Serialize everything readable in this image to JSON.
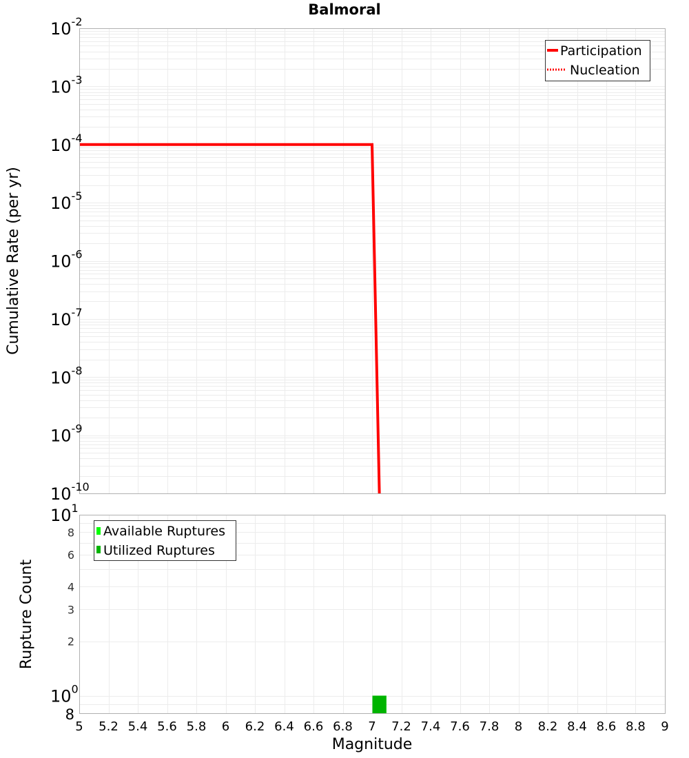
{
  "chart_data": [
    {
      "type": "line",
      "title": "Balmoral",
      "xlabel": "Magnitude",
      "ylabel": "Cumulative Rate (per yr)",
      "yscale": "log",
      "xlim": [
        5,
        9
      ],
      "ylim": [
        1e-10,
        0.01
      ],
      "y_ticks": [
        "10^-2",
        "10^-3",
        "10^-4",
        "10^-5",
        "10^-6",
        "10^-7",
        "10^-8",
        "10^-9",
        "10^-10"
      ],
      "grid": true,
      "legend_position": "upper right",
      "legend": [
        "Participation",
        "Nucleation"
      ],
      "series": [
        {
          "name": "Participation",
          "style": "solid",
          "color": "#ff0000",
          "x": [
            5.0,
            7.0,
            7.05
          ],
          "y": [
            0.0001,
            0.0001,
            1e-10
          ]
        },
        {
          "name": "Nucleation",
          "style": "dotted",
          "color": "#ff0000",
          "x": [
            5.0,
            7.0,
            7.05
          ],
          "y": [
            0.0001,
            0.0001,
            1e-10
          ]
        }
      ]
    },
    {
      "type": "bar",
      "title": "",
      "xlabel": "Magnitude",
      "ylabel": "Rupture Count",
      "yscale": "log",
      "xlim": [
        5,
        9
      ],
      "ylim": [
        0.8,
        10
      ],
      "y_ticks": [
        "8",
        "10^0",
        "2",
        "3",
        "4",
        "6",
        "8",
        "10^1"
      ],
      "x_ticks": [
        "5",
        "5.2",
        "5.4",
        "5.6",
        "5.8",
        "6",
        "6.2",
        "6.4",
        "6.6",
        "6.8",
        "7",
        "7.2",
        "7.4",
        "7.6",
        "7.8",
        "8",
        "8.2",
        "8.4",
        "8.6",
        "8.8",
        "9"
      ],
      "grid": true,
      "legend_position": "upper left",
      "legend": [
        "Available Ruptures",
        "Utilized Ruptures"
      ],
      "series": [
        {
          "name": "Available Ruptures",
          "color": "#00ff00",
          "bins": [
            {
              "x0": 7.0,
              "x1": 7.1,
              "value": 1
            }
          ]
        },
        {
          "name": "Utilized Ruptures",
          "color": "#00b400",
          "bins": [
            {
              "x0": 7.0,
              "x1": 7.1,
              "value": 1
            }
          ]
        }
      ]
    }
  ],
  "labels": {
    "title": "Balmoral",
    "top_ylabel": "Cumulative Rate (per yr)",
    "bottom_ylabel": "Rupture Count",
    "xlabel": "Magnitude",
    "legend_top": [
      "Participation",
      "Nucleation"
    ],
    "legend_bottom": [
      "Available Ruptures",
      "Utilized Ruptures"
    ]
  },
  "colors": {
    "participation": "#ff0000",
    "nucleation": "#ff0000",
    "available": "#00ff00",
    "utilized": "#00b400",
    "grid": "#ececec",
    "axis": "#b0b0b0"
  }
}
